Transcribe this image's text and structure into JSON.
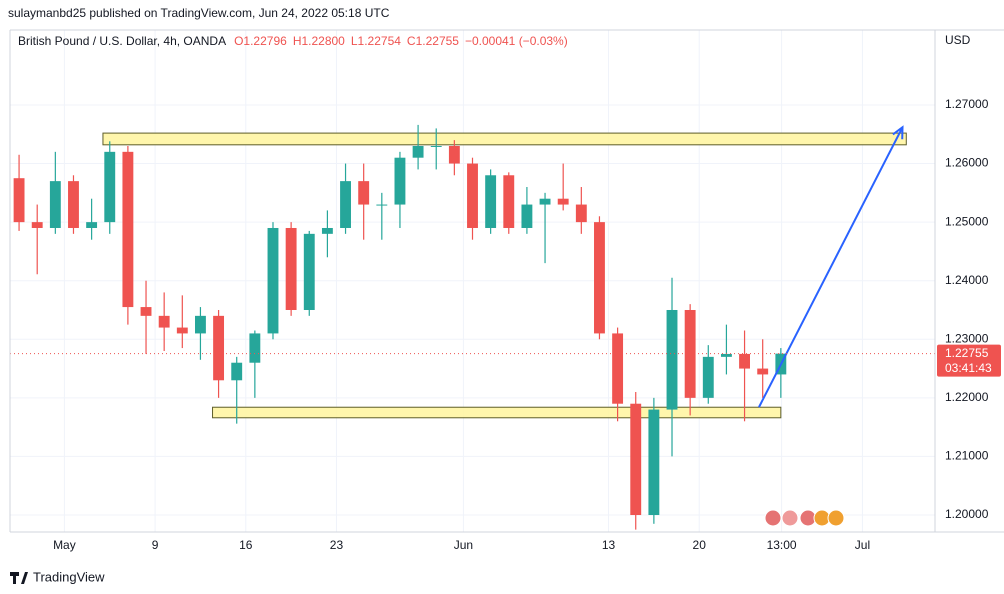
{
  "chart_data": {
    "type": "candlestick",
    "byline": "sulaymanbd25 published on TradingView.com, Jun 24, 2022 05:18 UTC",
    "title": "British Pound / U.S. Dollar, 4h, OANDA",
    "ohlc_header": [
      "O1.22796",
      "H1.22800",
      "L1.22754",
      "C1.22755",
      "−0.00041 (−0.03%)"
    ],
    "currency": "USD",
    "brand": "TradingView",
    "up_color": "#26a69a",
    "down_color": "#ef5350",
    "x": [
      "2022-04-27",
      "2022-04-28",
      "2022-04-29",
      "2022-05-02",
      "2022-05-03",
      "2022-05-04",
      "2022-05-05",
      "2022-05-06",
      "2022-05-09",
      "2022-05-10",
      "2022-05-11",
      "2022-05-12",
      "2022-05-13",
      "2022-05-16",
      "2022-05-17",
      "2022-05-18",
      "2022-05-19",
      "2022-05-20",
      "2022-05-23",
      "2022-05-24",
      "2022-05-25",
      "2022-05-26",
      "2022-05-27",
      "2022-05-30",
      "2022-05-31",
      "2022-06-01",
      "2022-06-02",
      "2022-06-03",
      "2022-06-06",
      "2022-06-07",
      "2022-06-08",
      "2022-06-09",
      "2022-06-10",
      "2022-06-13",
      "2022-06-14",
      "2022-06-15",
      "2022-06-16",
      "2022-06-17",
      "2022-06-20",
      "2022-06-21",
      "2022-06-22",
      "2022-06-23",
      "2022-06-24"
    ],
    "open": [
      1.2575,
      1.25,
      1.249,
      1.257,
      1.249,
      1.25,
      1.262,
      1.2355,
      1.234,
      1.232,
      1.231,
      1.234,
      1.223,
      1.226,
      1.231,
      1.249,
      1.235,
      1.248,
      1.249,
      1.257,
      1.253,
      1.253,
      1.261,
      1.263,
      1.263,
      1.26,
      1.249,
      1.258,
      1.249,
      1.253,
      1.254,
      1.253,
      1.25,
      1.231,
      1.219,
      1.2,
      1.218,
      1.235,
      1.22,
      1.227,
      1.2275,
      1.225,
      1.224
    ],
    "high": [
      1.2615,
      1.253,
      1.262,
      1.258,
      1.254,
      1.2638,
      1.263,
      1.24,
      1.238,
      1.2375,
      1.2355,
      1.235,
      1.227,
      1.2315,
      1.25,
      1.25,
      1.2485,
      1.252,
      1.26,
      1.26,
      1.255,
      1.262,
      1.2666,
      1.266,
      1.264,
      1.261,
      1.259,
      1.2585,
      1.256,
      1.255,
      1.26,
      1.256,
      1.251,
      1.232,
      1.221,
      1.22,
      1.2405,
      1.236,
      1.229,
      1.2325,
      1.2315,
      1.23,
      1.2285
    ],
    "low": [
      1.2485,
      1.2411,
      1.248,
      1.248,
      1.247,
      1.248,
      1.2325,
      1.2275,
      1.228,
      1.2285,
      1.2265,
      1.22,
      1.2156,
      1.22,
      1.23,
      1.234,
      1.234,
      1.244,
      1.248,
      1.247,
      1.247,
      1.249,
      1.259,
      1.259,
      1.258,
      1.247,
      1.248,
      1.248,
      1.248,
      1.243,
      1.252,
      1.248,
      1.23,
      1.216,
      1.1975,
      1.1985,
      1.21,
      1.217,
      1.219,
      1.224,
      1.216,
      1.22,
      1.22
    ],
    "close": [
      1.25,
      1.249,
      1.257,
      1.249,
      1.25,
      1.262,
      1.2355,
      1.234,
      1.232,
      1.231,
      1.234,
      1.223,
      1.226,
      1.231,
      1.249,
      1.235,
      1.248,
      1.249,
      1.257,
      1.253,
      1.253,
      1.261,
      1.263,
      1.263,
      1.26,
      1.249,
      1.258,
      1.249,
      1.253,
      1.254,
      1.253,
      1.25,
      1.231,
      1.219,
      1.2,
      1.218,
      1.235,
      1.22,
      1.227,
      1.2275,
      1.225,
      1.224,
      1.22755
    ],
    "last_price": {
      "value": 1.22755,
      "label": "1.22755"
    },
    "countdown": "03:41:43",
    "zones": [
      {
        "y": [
          1.2632,
          1.2652
        ],
        "x": [
          "2022-05-04 03:00",
          "2022-07-05 10:00"
        ]
      },
      {
        "y": [
          1.2166,
          1.2184
        ],
        "x": [
          "2022-05-12 04:00",
          "2022-06-24 12:00"
        ]
      }
    ],
    "arrow": {
      "x": [
        "2022-06-23 07:00",
        "2022-07-05 05:00"
      ],
      "y": [
        1.2184,
        1.2662
      ]
    },
    "xlim": [
      "2022-04-27",
      "2022-07-07"
    ],
    "ylim": [
      1.1971,
      1.2828
    ],
    "yticks": [
      {
        "value": 1.2,
        "label": "1.20000"
      },
      {
        "value": 1.21,
        "label": "1.21000"
      },
      {
        "value": 1.22,
        "label": "1.22000"
      },
      {
        "value": 1.23,
        "label": "1.23000"
      },
      {
        "value": 1.24,
        "label": "1.24000"
      },
      {
        "value": 1.25,
        "label": "1.25000"
      },
      {
        "value": 1.26,
        "label": "1.26000"
      },
      {
        "value": 1.27,
        "label": "1.27000"
      }
    ],
    "xticks": [
      {
        "value": "2022-05-02",
        "label": "May"
      },
      {
        "value": "2022-05-09",
        "label": "9"
      },
      {
        "value": "2022-05-16",
        "label": "16"
      },
      {
        "value": "2022-05-23",
        "label": "23"
      },
      {
        "value": "2022-06-01",
        "label": "Jun"
      },
      {
        "value": "2022-06-13",
        "label": "13"
      },
      {
        "value": "2022-06-20",
        "label": "20"
      },
      {
        "value": "2022-06-24 13:00",
        "label": "13:00"
      },
      {
        "value": "2022-07-01",
        "label": "Jul"
      }
    ],
    "grid": true
  }
}
